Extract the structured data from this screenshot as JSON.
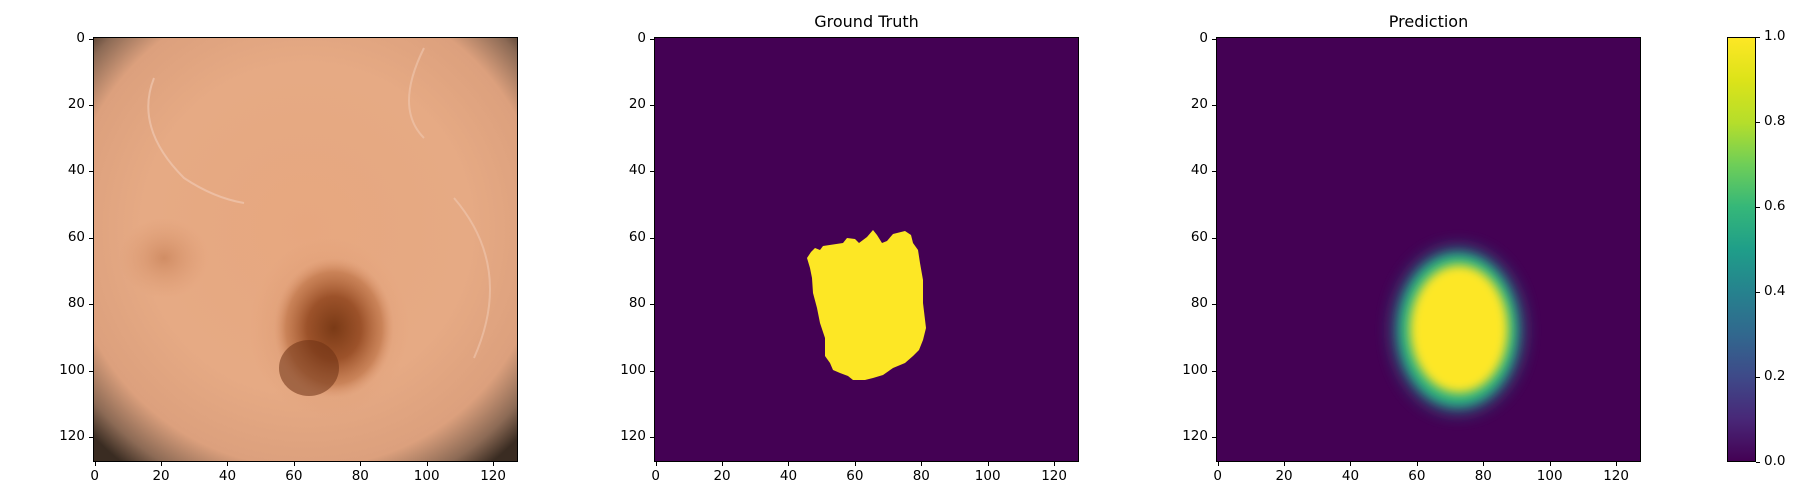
{
  "panels": [
    {
      "title": ""
    },
    {
      "title": "Ground Truth"
    },
    {
      "title": "Prediction"
    }
  ],
  "axes": {
    "y_ticks": [
      "0",
      "20",
      "40",
      "60",
      "80",
      "100",
      "120"
    ],
    "x_ticks": [
      "0",
      "20",
      "40",
      "60",
      "80",
      "100",
      "120"
    ]
  },
  "colorbar": {
    "ticks": [
      "1.0",
      "0.8",
      "0.6",
      "0.4",
      "0.2",
      "0.0"
    ]
  },
  "colors": {
    "mask_bg": "#440154",
    "mask_fg": "#fde725",
    "teal": "#21918c"
  }
}
